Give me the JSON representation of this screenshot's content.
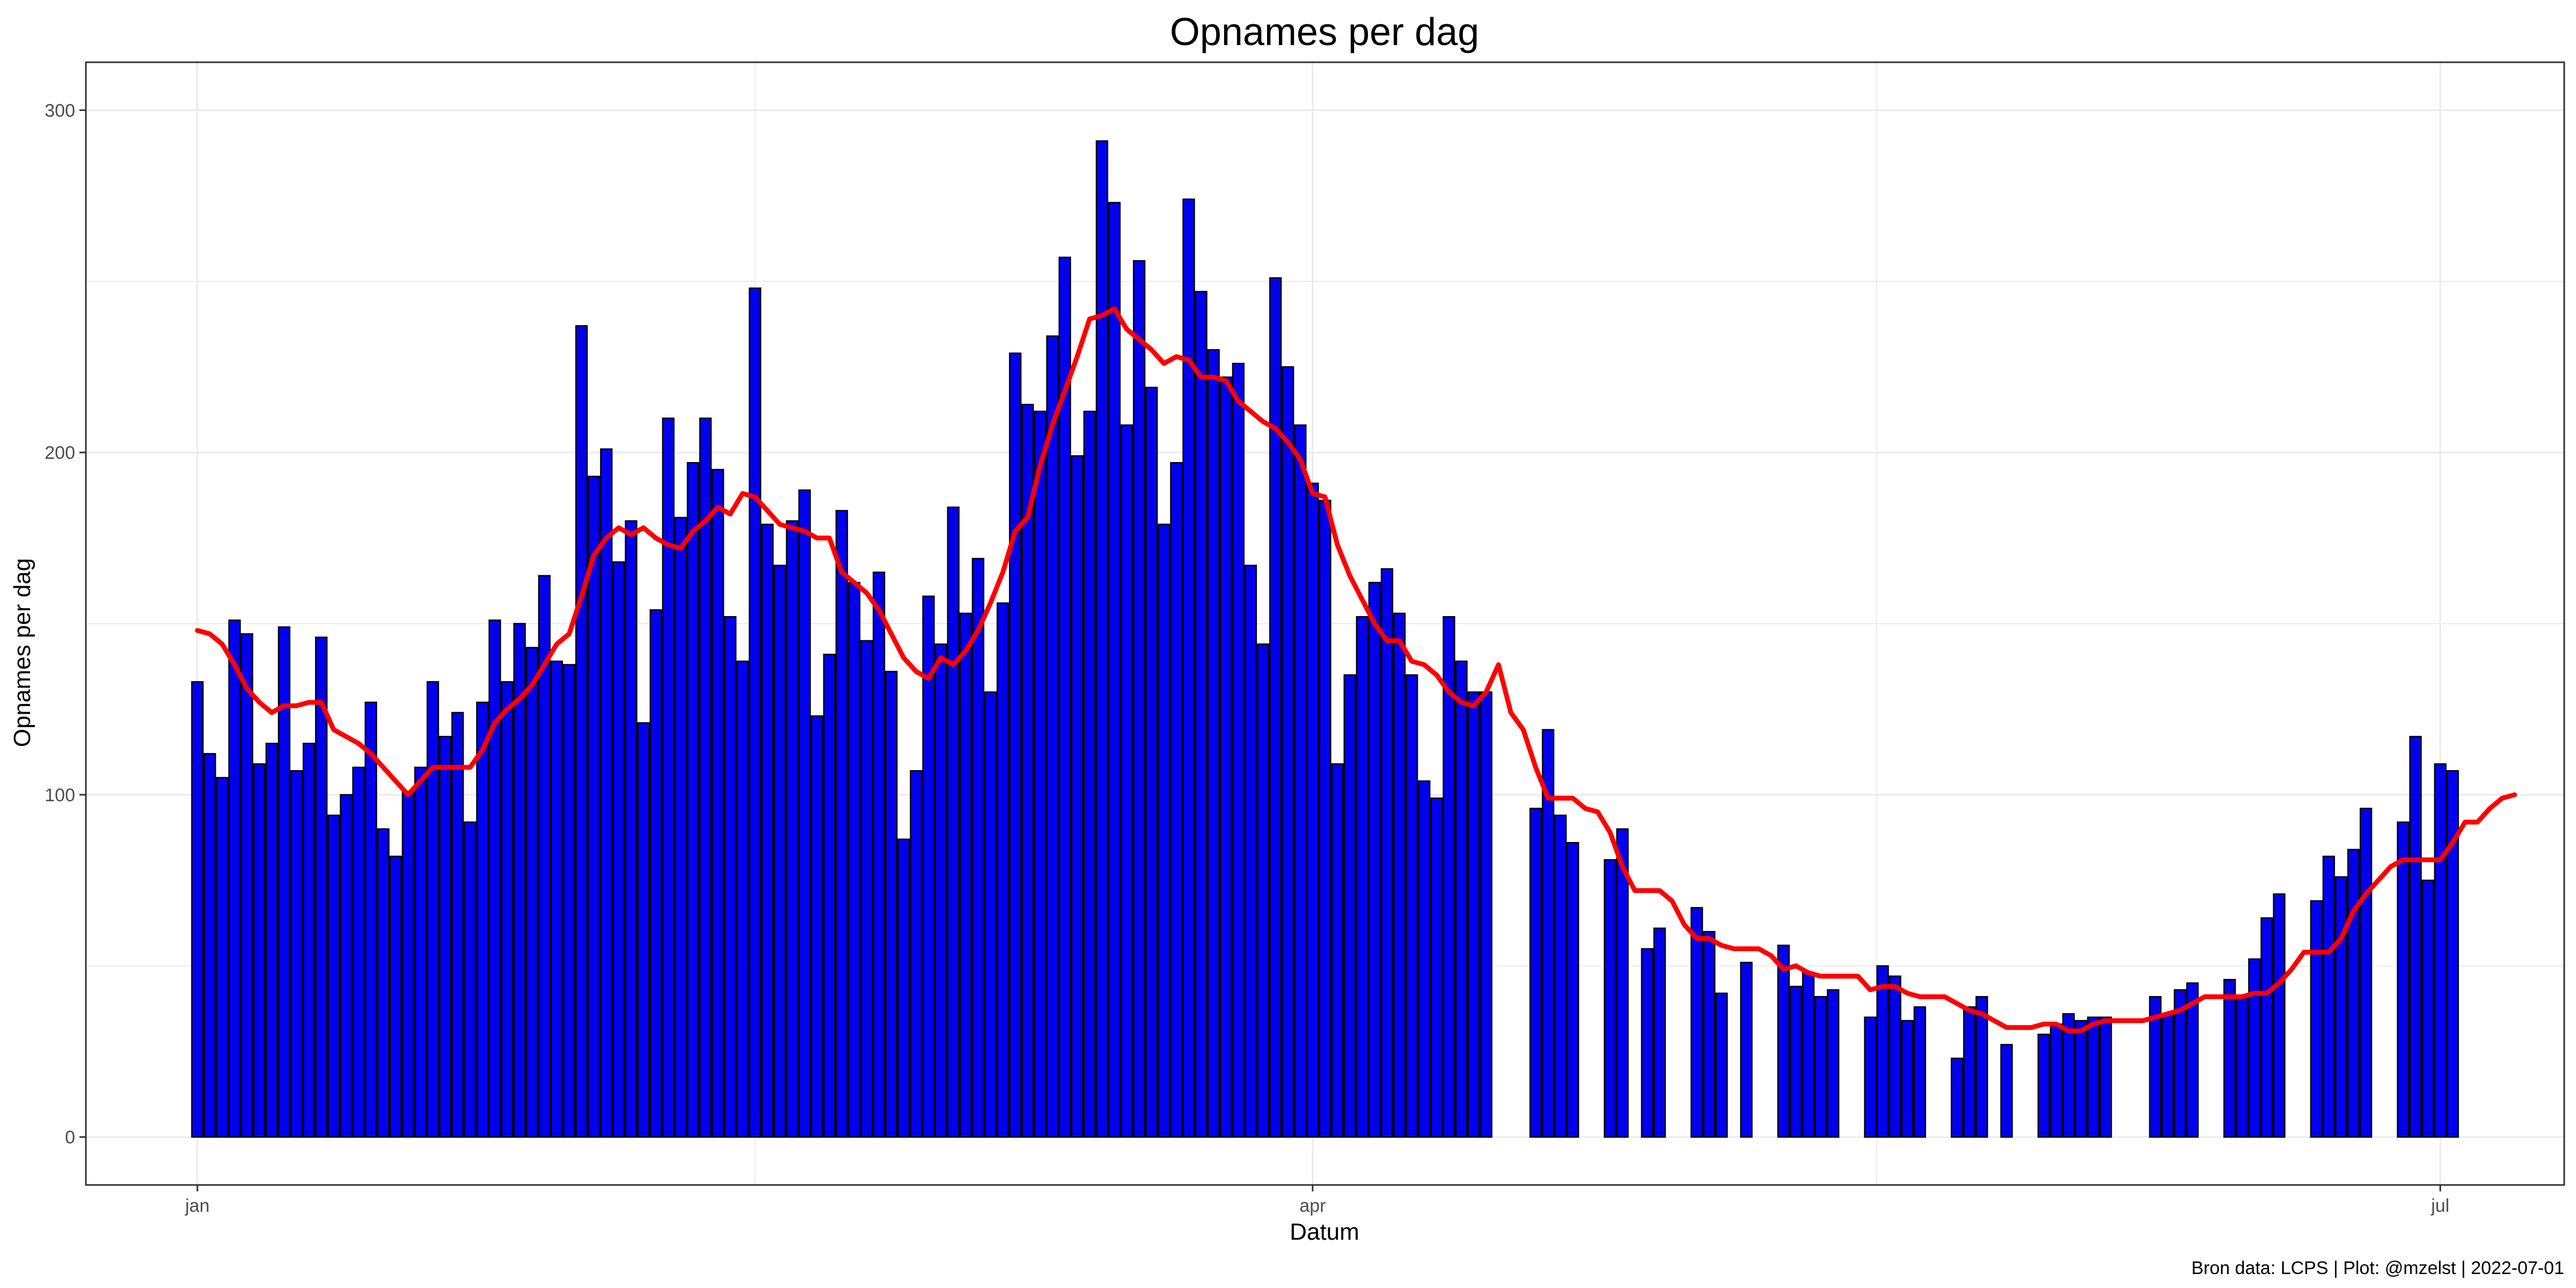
{
  "chart_data": {
    "type": "bar",
    "title": "Opnames per dag",
    "xlabel": "Datum",
    "ylabel": "Opnames per dag",
    "caption": "Bron data: LCPS  | Plot: @mzelst |  2022-07-01",
    "x_start_date": "2022-01-01",
    "x_tick_labels": [
      {
        "date": "2022-01-01",
        "label": "jan"
      },
      {
        "date": "2022-04-01",
        "label": "apr"
      },
      {
        "date": "2022-07-01",
        "label": "jul"
      }
    ],
    "y_ticks": [
      0,
      100,
      200,
      300
    ],
    "ylim": [
      -14,
      314
    ],
    "xlim": [
      "2021-12-23",
      "2022-07-11"
    ],
    "grid": true,
    "colors": {
      "bar_fill": "#0000ee",
      "bar_outline": "#000000",
      "line": "#ff0000",
      "grid": "#ebebeb",
      "panel_border": "#333333"
    },
    "series": [
      {
        "kind": "bar",
        "values": [
          133,
          112,
          105,
          151,
          147,
          109,
          115,
          149,
          107,
          115,
          146,
          94,
          100,
          108,
          127,
          90,
          82,
          101,
          108,
          133,
          117,
          124,
          92,
          127,
          151,
          133,
          150,
          143,
          164,
          139,
          138,
          237,
          193,
          201,
          168,
          180,
          121,
          154,
          210,
          181,
          197,
          210,
          195,
          152,
          139,
          248,
          179,
          167,
          180,
          189,
          123,
          141,
          183,
          162,
          145,
          165,
          136,
          87,
          107,
          158,
          144,
          184,
          153,
          169,
          130,
          156,
          229,
          214,
          212,
          234,
          257,
          199,
          212,
          291,
          273,
          208,
          256,
          219,
          179,
          197,
          274,
          247,
          230,
          222,
          226,
          167,
          144,
          251,
          225,
          208,
          191,
          186,
          109,
          135,
          152,
          162,
          166,
          153,
          135,
          104,
          99,
          152,
          139,
          130,
          130,
          null,
          null,
          null,
          96,
          119,
          94,
          86,
          null,
          null,
          81,
          90,
          null,
          55,
          61,
          null,
          null,
          67,
          60,
          42,
          null,
          51,
          null,
          null,
          56,
          44,
          48,
          41,
          43,
          null,
          null,
          35,
          50,
          47,
          34,
          38,
          null,
          null,
          23,
          38,
          41,
          null,
          27,
          null,
          null,
          30,
          33,
          36,
          34,
          35,
          35,
          null,
          null,
          null,
          41,
          36,
          43,
          45,
          null,
          null,
          46,
          41,
          52,
          64,
          71,
          null,
          null,
          69,
          82,
          76,
          84,
          96,
          null,
          null,
          92,
          117,
          75,
          109,
          107
        ]
      },
      {
        "kind": "line",
        "values": [
          148,
          147,
          144,
          138,
          131,
          127,
          124,
          126,
          126,
          127,
          127,
          119,
          117,
          115,
          112,
          108,
          104,
          100,
          104,
          108,
          108,
          108,
          108,
          113,
          121,
          125,
          128,
          132,
          138,
          144,
          147,
          158,
          170,
          175,
          178,
          176,
          178,
          175,
          173,
          172,
          177,
          180,
          184,
          182,
          188,
          187,
          183,
          179,
          178,
          177,
          175,
          175,
          165,
          162,
          159,
          154,
          147,
          140,
          136,
          134,
          140,
          138,
          142,
          148,
          156,
          165,
          177,
          181,
          196,
          208,
          218,
          228,
          239,
          240,
          242,
          236,
          233,
          230,
          226,
          228,
          227,
          222,
          222,
          221,
          215,
          212,
          209,
          207,
          203,
          198,
          188,
          187,
          173,
          164,
          157,
          150,
          145,
          145,
          139,
          138,
          135,
          130,
          127,
          126,
          130,
          138,
          124,
          119,
          108,
          99,
          99,
          99,
          96,
          95,
          89,
          79,
          72,
          72,
          72,
          69,
          62,
          58,
          58,
          56,
          55,
          55,
          55,
          53,
          49,
          50,
          48,
          47,
          47,
          47,
          47,
          43,
          44,
          44,
          42,
          41,
          41,
          41,
          39,
          37,
          36,
          34,
          32,
          32,
          32,
          33,
          33,
          31,
          31,
          33,
          34,
          34,
          34,
          34,
          35,
          36,
          37,
          39,
          41,
          41,
          41,
          41,
          42,
          42,
          45,
          49,
          54,
          54,
          54,
          58,
          66,
          71,
          75,
          79,
          81,
          81,
          81,
          81,
          86,
          92,
          92,
          96,
          99,
          100
        ]
      }
    ]
  }
}
